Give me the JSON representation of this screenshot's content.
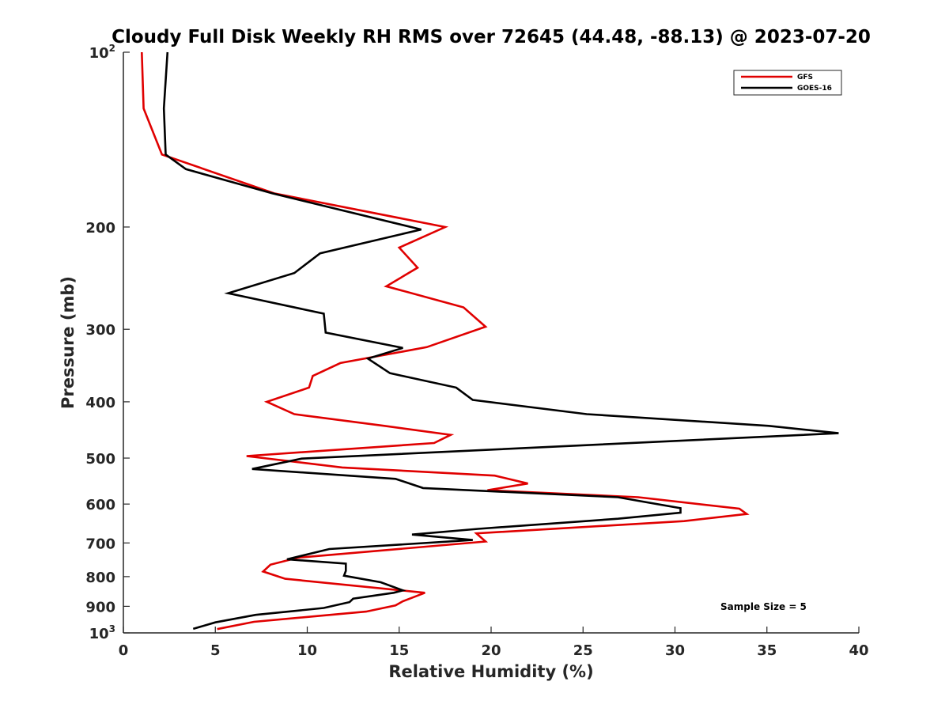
{
  "chart_data": {
    "type": "line",
    "title": "Cloudy Full Disk Weekly RH RMS over 72645 (44.48, -88.13) @ 2023-07-20",
    "xlabel": "Relative Humidity (%)",
    "ylabel": "Pressure (mb)",
    "xlim": [
      0,
      40
    ],
    "ylim": [
      100,
      1000
    ],
    "yscale": "log",
    "yreversed": true,
    "grid": false,
    "legend_position": "top-right",
    "x_ticks": [
      0,
      5,
      10,
      15,
      20,
      25,
      30,
      35,
      40
    ],
    "x_tick_labels": [
      "0",
      "5",
      "10",
      "15",
      "20",
      "25",
      "30",
      "35",
      "40"
    ],
    "y_ticks": [
      {
        "value": 100,
        "base": "10",
        "exp": "2"
      },
      {
        "value": 200,
        "label": "200"
      },
      {
        "value": 300,
        "label": "300"
      },
      {
        "value": 400,
        "label": "400"
      },
      {
        "value": 500,
        "label": "500"
      },
      {
        "value": 600,
        "label": "600"
      },
      {
        "value": 700,
        "label": "700"
      },
      {
        "value": 800,
        "label": "800"
      },
      {
        "value": 900,
        "label": "900"
      },
      {
        "value": 1000,
        "base": "10",
        "exp": "3"
      }
    ],
    "series": [
      {
        "name": "GFS",
        "color": "#e00000",
        "points": [
          [
            1.0,
            100
          ],
          [
            1.1,
            125
          ],
          [
            2.1,
            150
          ],
          [
            8.2,
            175
          ],
          [
            17.5,
            200
          ],
          [
            15.0,
            217
          ],
          [
            16.0,
            235
          ],
          [
            14.3,
            253
          ],
          [
            18.5,
            275
          ],
          [
            19.7,
            297
          ],
          [
            16.5,
            322
          ],
          [
            11.8,
            343
          ],
          [
            10.3,
            361
          ],
          [
            10.1,
            378
          ],
          [
            7.8,
            400
          ],
          [
            9.3,
            420
          ],
          [
            14.2,
            440
          ],
          [
            17.8,
            456
          ],
          [
            16.9,
            471
          ],
          [
            6.7,
            496
          ],
          [
            11.9,
            519
          ],
          [
            20.2,
            536
          ],
          [
            22.0,
            553
          ],
          [
            19.8,
            568
          ],
          [
            28.0,
            584
          ],
          [
            33.5,
            611
          ],
          [
            33.9,
            624
          ],
          [
            30.5,
            642
          ],
          [
            19.2,
            674
          ],
          [
            19.7,
            696
          ],
          [
            9.5,
            742
          ],
          [
            8.0,
            763
          ],
          [
            7.6,
            784
          ],
          [
            8.8,
            807
          ],
          [
            16.4,
            853
          ],
          [
            15.2,
            882
          ],
          [
            14.8,
            897
          ],
          [
            13.2,
            919
          ],
          [
            7.1,
            957
          ],
          [
            5.1,
            985
          ]
        ]
      },
      {
        "name": "GOES-16",
        "color": "#000000",
        "points": [
          [
            2.4,
            100
          ],
          [
            2.2,
            125
          ],
          [
            2.3,
            150
          ],
          [
            3.4,
            159
          ],
          [
            8.1,
            175
          ],
          [
            16.2,
            202
          ],
          [
            10.7,
            222
          ],
          [
            9.3,
            240
          ],
          [
            5.7,
            260
          ],
          [
            10.9,
            282
          ],
          [
            11.0,
            304
          ],
          [
            15.2,
            323
          ],
          [
            13.3,
            337
          ],
          [
            14.5,
            357
          ],
          [
            18.1,
            378
          ],
          [
            19.0,
            397
          ],
          [
            25.2,
            420
          ],
          [
            35.1,
            440
          ],
          [
            38.9,
            453
          ],
          [
            9.7,
            501
          ],
          [
            7.0,
            522
          ],
          [
            14.8,
            543
          ],
          [
            16.3,
            563
          ],
          [
            26.9,
            584
          ],
          [
            30.3,
            610
          ],
          [
            30.3,
            621
          ],
          [
            26.9,
            636
          ],
          [
            19.3,
            662
          ],
          [
            15.7,
            677
          ],
          [
            19.0,
            692
          ],
          [
            11.2,
            717
          ],
          [
            8.9,
            747
          ],
          [
            12.1,
            760
          ],
          [
            12.1,
            782
          ],
          [
            12.0,
            797
          ],
          [
            14.0,
            818
          ],
          [
            15.2,
            845
          ],
          [
            14.7,
            853
          ],
          [
            12.5,
            873
          ],
          [
            12.3,
            885
          ],
          [
            10.9,
            906
          ],
          [
            7.2,
            931
          ],
          [
            5.0,
            959
          ],
          [
            3.8,
            984
          ]
        ]
      }
    ],
    "annotations": [
      {
        "text": "Sample Size = 5",
        "position": "bottom-right"
      }
    ]
  }
}
